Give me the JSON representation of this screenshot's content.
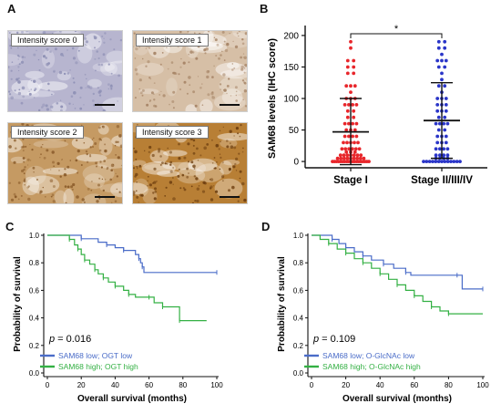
{
  "panels": {
    "a": "A",
    "b": "B",
    "c": "C",
    "d": "D"
  },
  "panel_a": {
    "scores": [
      {
        "label": "Intensity score 0",
        "tint": "#b7b5cf",
        "dot": "#8d8fb4"
      },
      {
        "label": "Intensity score 1",
        "tint": "#d6bfa6",
        "dot": "#a68466"
      },
      {
        "label": "Intensity score 2",
        "tint": "#c59a63",
        "dot": "#8a5b2a"
      },
      {
        "label": "Intensity score 3",
        "tint": "#b87f35",
        "dot": "#6e3f10"
      }
    ]
  },
  "chart_data": [
    {
      "type": "scatter",
      "panel": "B",
      "ylabel": "SAM68 levels (IHC score)",
      "yticks": [
        0,
        50,
        100,
        150,
        200
      ],
      "ylim": [
        -10,
        210
      ],
      "categories": [
        "Stage I",
        "Stage II/III/IV"
      ],
      "colors": [
        "#e8262b",
        "#2a35c8"
      ],
      "significance": "*",
      "summary": [
        {
          "mean": 47,
          "sd_low": -5,
          "sd_high": 100
        },
        {
          "mean": 65,
          "sd_low": 5,
          "sd_high": 125
        }
      ],
      "series": [
        {
          "category": "Stage I",
          "values": [
            190,
            180,
            160,
            160,
            150,
            150,
            140,
            140,
            120,
            120,
            120,
            110,
            100,
            100,
            100,
            90,
            90,
            90,
            90,
            80,
            80,
            70,
            70,
            60,
            60,
            60,
            60,
            50,
            50,
            50,
            40,
            40,
            40,
            40,
            30,
            30,
            30,
            30,
            30,
            20,
            20,
            20,
            20,
            20,
            20,
            15,
            15,
            15,
            10,
            10,
            10,
            10,
            10,
            10,
            10,
            5,
            5,
            5,
            5,
            5,
            5,
            5,
            5,
            5,
            0,
            0,
            0,
            0,
            0,
            0,
            0,
            0,
            0,
            0,
            0,
            0,
            0,
            0,
            0,
            0,
            0,
            0,
            0
          ]
        },
        {
          "category": "Stage II/III/IV",
          "values": [
            190,
            190,
            180,
            180,
            170,
            160,
            160,
            160,
            150,
            150,
            140,
            130,
            120,
            120,
            110,
            100,
            100,
            100,
            90,
            90,
            90,
            80,
            80,
            80,
            70,
            70,
            60,
            60,
            60,
            60,
            50,
            50,
            40,
            40,
            40,
            30,
            30,
            30,
            20,
            20,
            20,
            20,
            10,
            10,
            10,
            10,
            5,
            5,
            5,
            5,
            0,
            0,
            0,
            0,
            0,
            0,
            0,
            0,
            0,
            0,
            0,
            0,
            0
          ]
        }
      ]
    },
    {
      "type": "line",
      "panel": "C",
      "xlabel": "Overall survival (months)",
      "ylabel": "Probability of survival",
      "xticks": [
        0,
        20,
        40,
        60,
        80,
        100
      ],
      "yticks": [
        0.0,
        0.2,
        0.4,
        0.6,
        0.8,
        1.0
      ],
      "xlim": [
        0,
        100
      ],
      "ylim": [
        0,
        1.0
      ],
      "annotation": {
        "p_label": "p",
        "p_value": "= 0.016"
      },
      "series": [
        {
          "name": "SAM68 low; OGT low",
          "color": "#4a6cc8",
          "steps": [
            [
              0,
              1.0
            ],
            [
              15,
              1.0
            ],
            [
              20,
              0.975
            ],
            [
              30,
              0.95
            ],
            [
              35,
              0.93
            ],
            [
              40,
              0.91
            ],
            [
              45,
              0.89
            ],
            [
              52,
              0.86
            ],
            [
              54,
              0.83
            ],
            [
              55,
              0.8
            ],
            [
              56,
              0.77
            ],
            [
              57,
              0.73
            ],
            [
              100,
              0.73
            ]
          ]
        },
        {
          "name": "SAM68 high; OGT high",
          "color": "#33b043",
          "steps": [
            [
              0,
              1.0
            ],
            [
              10,
              1.0
            ],
            [
              13,
              0.97
            ],
            [
              16,
              0.93
            ],
            [
              18,
              0.9
            ],
            [
              20,
              0.86
            ],
            [
              22,
              0.82
            ],
            [
              25,
              0.79
            ],
            [
              28,
              0.75
            ],
            [
              30,
              0.72
            ],
            [
              33,
              0.69
            ],
            [
              36,
              0.66
            ],
            [
              40,
              0.63
            ],
            [
              45,
              0.6
            ],
            [
              48,
              0.57
            ],
            [
              52,
              0.55
            ],
            [
              60,
              0.55
            ],
            [
              63,
              0.51
            ],
            [
              68,
              0.48
            ],
            [
              76,
              0.48
            ],
            [
              78,
              0.38
            ],
            [
              94,
              0.38
            ]
          ]
        }
      ]
    },
    {
      "type": "line",
      "panel": "D",
      "xlabel": "Overall survival (months)",
      "ylabel": "Probability of survival",
      "xticks": [
        0,
        20,
        40,
        60,
        80,
        100
      ],
      "yticks": [
        0.0,
        0.2,
        0.4,
        0.6,
        0.8,
        1.0
      ],
      "xlim": [
        0,
        100
      ],
      "ylim": [
        0,
        1.0
      ],
      "annotation": {
        "p_label": "p",
        "p_value": "= 0.109"
      },
      "series": [
        {
          "name": "SAM68 low; O-GlcNAc low",
          "color": "#4a6cc8",
          "steps": [
            [
              0,
              1.0
            ],
            [
              8,
              1.0
            ],
            [
              12,
              0.97
            ],
            [
              16,
              0.94
            ],
            [
              20,
              0.91
            ],
            [
              25,
              0.88
            ],
            [
              30,
              0.85
            ],
            [
              35,
              0.82
            ],
            [
              42,
              0.79
            ],
            [
              48,
              0.76
            ],
            [
              55,
              0.73
            ],
            [
              58,
              0.71
            ],
            [
              85,
              0.71
            ],
            [
              88,
              0.61
            ],
            [
              100,
              0.61
            ]
          ]
        },
        {
          "name": "SAM68 high; O-GlcNAc high",
          "color": "#33b043",
          "steps": [
            [
              0,
              1.0
            ],
            [
              5,
              0.97
            ],
            [
              10,
              0.94
            ],
            [
              15,
              0.9
            ],
            [
              20,
              0.87
            ],
            [
              25,
              0.83
            ],
            [
              30,
              0.8
            ],
            [
              35,
              0.76
            ],
            [
              40,
              0.72
            ],
            [
              45,
              0.68
            ],
            [
              50,
              0.64
            ],
            [
              55,
              0.6
            ],
            [
              60,
              0.56
            ],
            [
              65,
              0.52
            ],
            [
              70,
              0.48
            ],
            [
              75,
              0.45
            ],
            [
              80,
              0.43
            ],
            [
              100,
              0.43
            ]
          ]
        }
      ]
    }
  ]
}
